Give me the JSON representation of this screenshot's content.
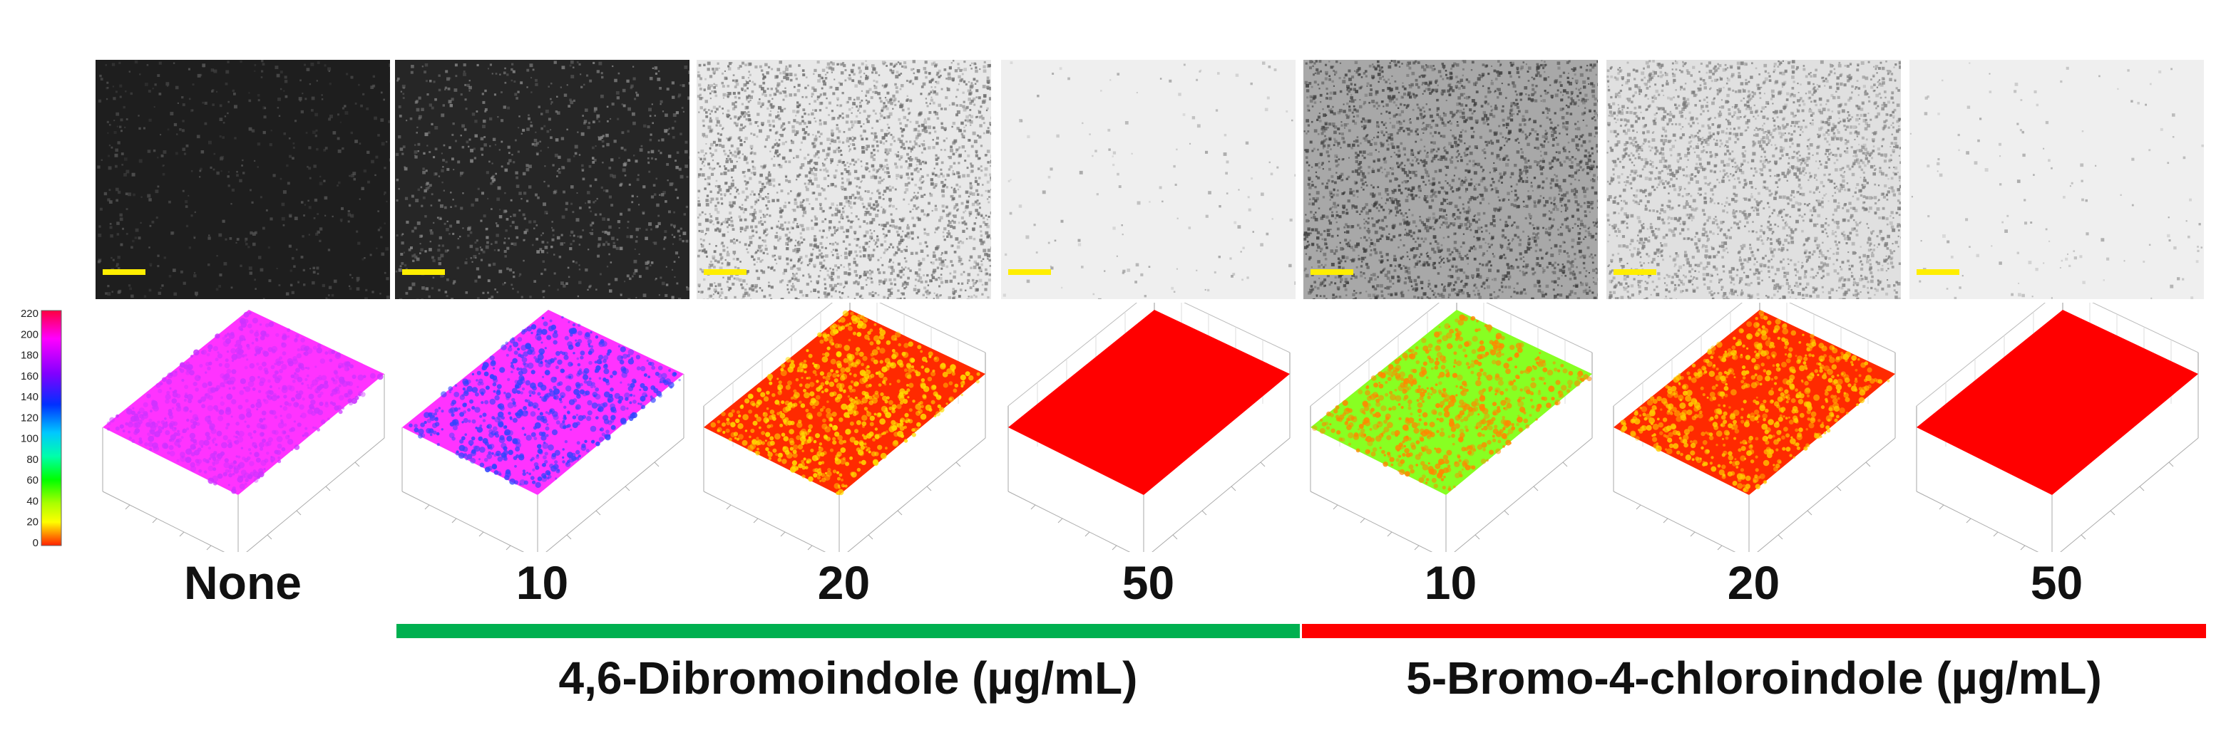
{
  "colorbar": {
    "ticks": [
      "220",
      "200",
      "180",
      "160",
      "140",
      "120",
      "100",
      "80",
      "60",
      "40",
      "20",
      "0"
    ],
    "colors": [
      "#ff0000",
      "#ff8000",
      "#ffff00",
      "#80ff00",
      "#00ff00",
      "#00ffaa",
      "#00c8ff",
      "#0050ff",
      "#5020ff",
      "#a000ff",
      "#ff00ff",
      "#ff0060"
    ]
  },
  "panels": [
    {
      "id": "none",
      "label": "None",
      "micro_bg": "#1e1e1e",
      "speck_color": "#555555",
      "surface": "#ff33ff",
      "accent": "#cc33ff"
    },
    {
      "id": "dbi10",
      "label": "10",
      "micro_bg": "#262626",
      "speck_color": "#8a8a8a",
      "surface": "#ff33ff",
      "accent": "#3344ff"
    },
    {
      "id": "dbi20",
      "label": "20",
      "micro_bg": "#e8e8e8",
      "speck_color": "#6a6a6a",
      "surface": "#ff2a00",
      "accent": "#ffdd00"
    },
    {
      "id": "dbi50",
      "label": "50",
      "micro_bg": "#efefef",
      "speck_color": "#9a9a9a",
      "surface": "#ff0000",
      "accent": "#ff0000"
    },
    {
      "id": "bci10",
      "label": "10",
      "micro_bg": "#a8a8a8",
      "speck_color": "#3c3c3c",
      "surface": "#88ff22",
      "accent": "#ff8800"
    },
    {
      "id": "bci20",
      "label": "20",
      "micro_bg": "#e0e0e0",
      "speck_color": "#7a7a7a",
      "surface": "#ff2a00",
      "accent": "#ffcc00"
    },
    {
      "id": "bci50",
      "label": "50",
      "micro_bg": "#efefef",
      "speck_color": "#a0a0a0",
      "surface": "#ff0000",
      "accent": "#ff0000"
    }
  ],
  "scale_bar_color": "#ffee00",
  "groups": [
    {
      "name": "4,6-Dibromoindole (µg/mL)",
      "color": "#00b050"
    },
    {
      "name": "5-Bromo-4-chloroindole (µg/mL)",
      "color": "#ff0000"
    }
  ]
}
